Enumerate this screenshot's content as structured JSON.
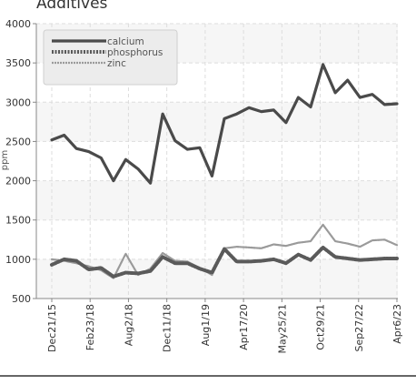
{
  "chart_data": {
    "type": "line",
    "title": "Additives",
    "ylabel": "ppm",
    "ylim": [
      500,
      4000
    ],
    "yticks": [
      500,
      1000,
      1500,
      2000,
      2500,
      3000,
      3500,
      4000
    ],
    "xtick_labels": [
      "Dec21/15",
      "Feb23/18",
      "Aug2/18",
      "Dec11/18",
      "Aug1/19",
      "Apr17/20",
      "May25/21",
      "Oct29/21",
      "Sep27/22",
      "Apr6/23"
    ],
    "grid": true,
    "legend_position": "top-left",
    "series": [
      {
        "name": "calcium",
        "color": "#4a4a4a",
        "style": "solid",
        "values": [
          2520,
          2580,
          2410,
          2370,
          2290,
          2000,
          2270,
          2150,
          1970,
          2850,
          2510,
          2400,
          2420,
          2060,
          2790,
          2850,
          2930,
          2880,
          2900,
          2740,
          3060,
          2940,
          3480,
          3120,
          3280,
          3060,
          3100,
          2970,
          2980
        ]
      },
      {
        "name": "phosphorus",
        "color": "#5a5a5a",
        "style": "dotted",
        "values": [
          930,
          1000,
          980,
          870,
          890,
          780,
          830,
          820,
          850,
          1030,
          950,
          950,
          880,
          830,
          1130,
          970,
          970,
          980,
          1000,
          950,
          1060,
          990,
          1150,
          1030,
          1010,
          990,
          1000,
          1010,
          1010
        ]
      },
      {
        "name": "zinc",
        "color": "#9a9a9a",
        "style": "dashed",
        "values": [
          1000,
          980,
          950,
          910,
          860,
          760,
          1070,
          800,
          880,
          1080,
          980,
          970,
          890,
          800,
          1140,
          1160,
          1150,
          1140,
          1190,
          1170,
          1210,
          1230,
          1440,
          1230,
          1200,
          1160,
          1240,
          1250,
          1180
        ]
      }
    ]
  }
}
